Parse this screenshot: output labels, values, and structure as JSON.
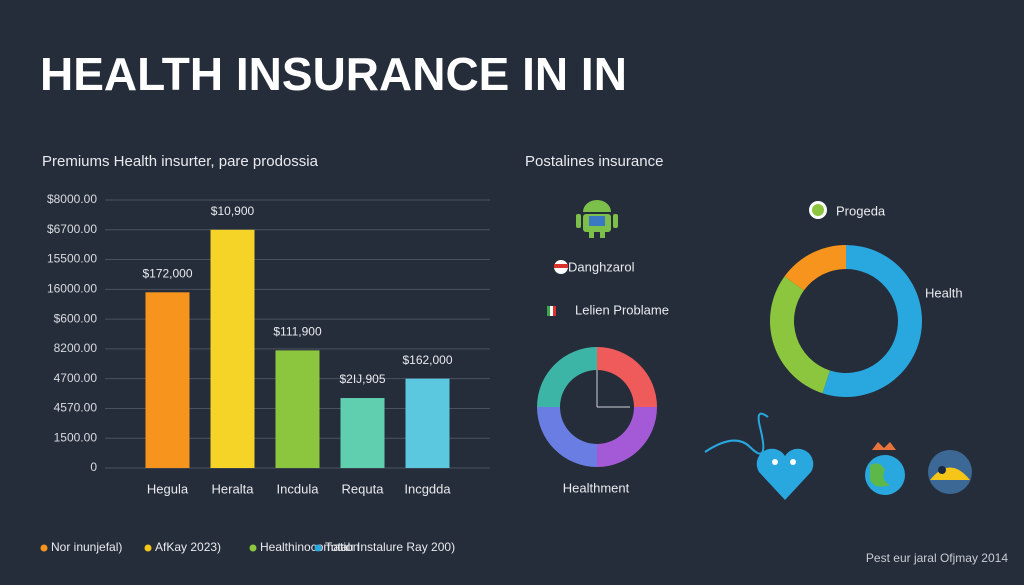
{
  "title": "HEALTH INSURANCE IN IN",
  "footer": "Pest eur jaral Ofjmay 2014",
  "legend": [
    {
      "label": "Nor inunjefal)",
      "color": "#f7941d"
    },
    {
      "label": "AfKay 2023)",
      "color": "#f5c518"
    },
    {
      "label": "Healthinocomation",
      "color": "#8cc63f"
    },
    {
      "label": "Totalı Instalure Ray 200)",
      "color": "#29a8e0"
    }
  ],
  "chart_data": [
    {
      "type": "bar",
      "title": "Premiums Health insurter, pare prodossia",
      "categories": [
        "Hegula",
        "Heralta",
        "Incdula",
        "Requta",
        "Incgdda"
      ],
      "values": [
        5.9,
        8.0,
        3.95,
        2.35,
        3.0
      ],
      "colors": [
        "#f7941d",
        "#f5d327",
        "#8cc63f",
        "#5fcfb0",
        "#5bc8e0"
      ],
      "annotations": [
        "$172,000",
        "$10,900",
        "$111,900",
        "$2IJ,905",
        "$162,000"
      ],
      "ylim": [
        0,
        9
      ],
      "yticks": [
        0,
        {
          "value": 1,
          "label": "1500.00"
        },
        {
          "value": 2,
          "label": "4570.00"
        },
        {
          "value": 3,
          "label": "4700.00"
        },
        {
          "value": 4,
          "label": "8200.00"
        },
        {
          "value": 5,
          "label": "$600.00"
        },
        {
          "value": 6,
          "label": "16000.00"
        },
        {
          "value": 7,
          "label": "15500.00"
        },
        {
          "value": 8,
          "label": "$6700.00"
        },
        {
          "value": 9,
          "label": "$8000.00"
        }
      ],
      "grid": true
    },
    {
      "type": "donut",
      "title": "Postalines insurance",
      "notes": [
        "Danghzarol",
        "Lelien Problame"
      ],
      "caption": "Healthment",
      "values": [
        25,
        25,
        25,
        25
      ],
      "colors": [
        "#ef5b5b",
        "#a45ad6",
        "#6a7de2",
        "#3db5a6"
      ]
    },
    {
      "type": "donut",
      "annotations": [
        "Progeda",
        "Health"
      ],
      "values": [
        55,
        30,
        15
      ],
      "colors": [
        "#29a8e0",
        "#8cc63f",
        "#f7941d"
      ]
    }
  ]
}
